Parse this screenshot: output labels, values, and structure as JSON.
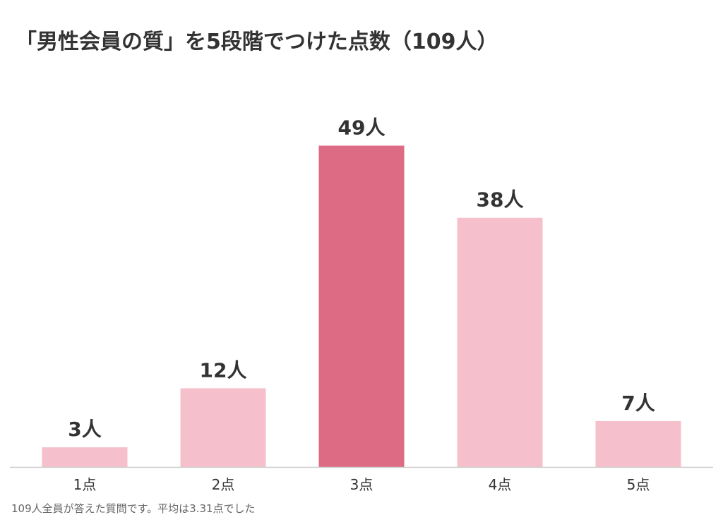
{
  "chart_data": {
    "type": "bar",
    "title": "「男性会員の質」を5段階でつけた点数（109人）",
    "categories": [
      "1点",
      "2点",
      "3点",
      "4点",
      "5点"
    ],
    "values": [
      3,
      12,
      49,
      38,
      7
    ],
    "value_labels": [
      "3人",
      "12人",
      "49人",
      "38人",
      "7人"
    ],
    "highlight_index": 2,
    "ylim": [
      0,
      54
    ],
    "grid": false,
    "legend": "none",
    "colors": {
      "bar": "#f5c0cb",
      "highlight": "#dc6b83",
      "axis": "#cccccc",
      "label": "#333333"
    }
  },
  "footnote": "109人全員が答えた質問です。平均は3.31点でした"
}
